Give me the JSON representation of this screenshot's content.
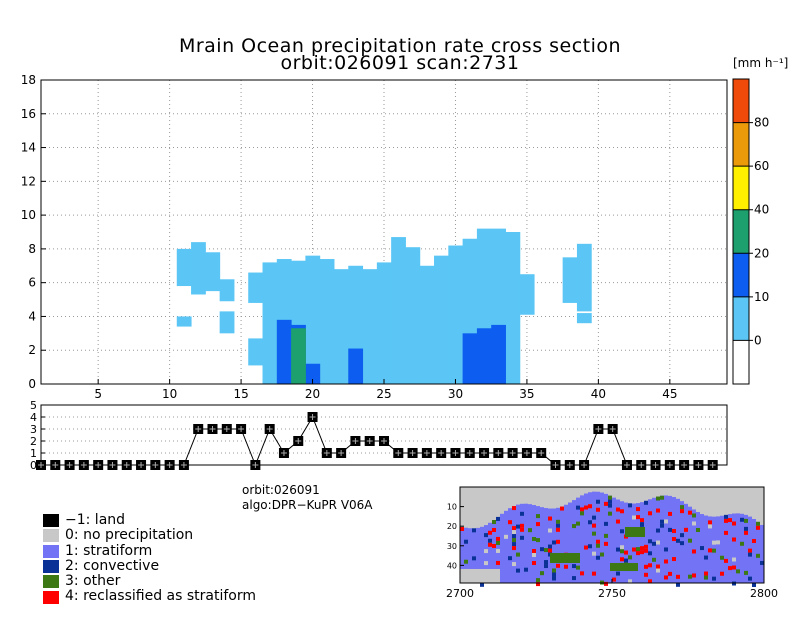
{
  "title": {
    "line1": "Mrain Ocean precipitation rate cross section",
    "line2": "orbit:026091    scan:2731"
  },
  "chart_data": [
    {
      "id": "cross-section",
      "type": "heatmap",
      "title": "Mrain Ocean precipitation rate cross section",
      "xlim": [
        1,
        49
      ],
      "ylim": [
        0,
        18
      ],
      "xticks": [
        5,
        10,
        15,
        20,
        25,
        30,
        35,
        40,
        45
      ],
      "yticks": [
        0,
        2,
        4,
        6,
        8,
        10,
        12,
        14,
        16,
        18
      ],
      "grid": true,
      "colorbar": {
        "unit": "[mm h⁻¹]",
        "levels": [
          -10,
          0,
          10,
          20,
          40,
          60,
          80,
          100
        ],
        "tick_labels": [
          "0",
          "10",
          "20",
          "40",
          "60",
          "80"
        ],
        "colors": [
          "#ffffff",
          "#5bc6f5",
          "#0d5ef0",
          "#1ea06e",
          "#fff000",
          "#eb9a0a",
          "#f04a0a"
        ]
      },
      "light_rain_columns": [
        {
          "x": 11,
          "from": 5.8,
          "to": 8.0
        },
        {
          "x": 12,
          "from": 5.3,
          "to": 8.4
        },
        {
          "x": 13,
          "from": 5.5,
          "to": 7.8
        },
        {
          "x": 14,
          "from": 4.9,
          "to": 6.2
        },
        {
          "x": 16,
          "from": 4.8,
          "to": 6.6
        },
        {
          "x": 17,
          "from": 0,
          "to": 7.2
        },
        {
          "x": 18,
          "from": 0,
          "to": 7.4
        },
        {
          "x": 19,
          "from": 0,
          "to": 7.3
        },
        {
          "x": 20,
          "from": 0,
          "to": 7.6
        },
        {
          "x": 21,
          "from": 0,
          "to": 7.4
        },
        {
          "x": 22,
          "from": 0,
          "to": 6.8
        },
        {
          "x": 23,
          "from": 0,
          "to": 7.0
        },
        {
          "x": 24,
          "from": 0,
          "to": 6.8
        },
        {
          "x": 25,
          "from": 0,
          "to": 7.2
        },
        {
          "x": 26,
          "from": 0,
          "to": 8.7
        },
        {
          "x": 27,
          "from": 0,
          "to": 8.1
        },
        {
          "x": 28,
          "from": 0,
          "to": 7.0
        },
        {
          "x": 29,
          "from": 0,
          "to": 7.6
        },
        {
          "x": 30,
          "from": 0,
          "to": 8.2
        },
        {
          "x": 31,
          "from": 0,
          "to": 8.6
        },
        {
          "x": 32,
          "from": 0,
          "to": 9.2
        },
        {
          "x": 33,
          "from": 0,
          "to": 9.2
        },
        {
          "x": 34,
          "from": 0,
          "to": 9.0
        },
        {
          "x": 35,
          "from": 4.1,
          "to": 6.5
        },
        {
          "x": 38,
          "from": 4.8,
          "to": 7.5
        },
        {
          "x": 39,
          "from": 4.3,
          "to": 8.3
        }
      ],
      "light_rain_patches": [
        {
          "x": 11,
          "from": 3.4,
          "to": 4.0
        },
        {
          "x": 14,
          "from": 3.0,
          "to": 4.3
        },
        {
          "x": 16,
          "from": 1.1,
          "to": 2.7
        },
        {
          "x": 39,
          "from": 3.6,
          "to": 4.2
        }
      ],
      "moderate_rain_columns": [
        {
          "x": 18,
          "from": 0,
          "to": 3.8
        },
        {
          "x": 19,
          "from": 0,
          "to": 3.5
        },
        {
          "x": 20,
          "from": 0,
          "to": 1.2
        },
        {
          "x": 23,
          "from": 0,
          "to": 2.1
        },
        {
          "x": 31,
          "from": 0,
          "to": 3.0
        },
        {
          "x": 32,
          "from": 0,
          "to": 3.3
        },
        {
          "x": 33,
          "from": 0,
          "to": 3.5
        }
      ],
      "heavy_rain_columns": [
        {
          "x": 19,
          "from": 0,
          "to": 3.3
        }
      ]
    },
    {
      "id": "rain-type",
      "type": "line",
      "ylim": [
        0,
        5
      ],
      "yticks": [
        0,
        1,
        2,
        3,
        4,
        5
      ],
      "x": [
        1,
        2,
        3,
        4,
        5,
        6,
        7,
        8,
        9,
        10,
        11,
        12,
        13,
        14,
        15,
        16,
        17,
        18,
        19,
        20,
        21,
        22,
        23,
        24,
        25,
        26,
        27,
        28,
        29,
        30,
        31,
        32,
        33,
        34,
        35,
        36,
        37,
        38,
        39,
        40,
        41,
        42,
        43,
        44,
        45,
        46,
        47,
        48
      ],
      "y": [
        0,
        0,
        0,
        0,
        0,
        0,
        0,
        0,
        0,
        0,
        0,
        3,
        3,
        3,
        3,
        0,
        3,
        1,
        2,
        4,
        1,
        1,
        2,
        2,
        2,
        1,
        1,
        1,
        1,
        1,
        1,
        1,
        1,
        1,
        1,
        1,
        0,
        0,
        0,
        3,
        3,
        0,
        0,
        0,
        0,
        0,
        0,
        0
      ]
    },
    {
      "id": "swath-map",
      "type": "heatmap",
      "xticks": [
        2700,
        2750,
        2800
      ],
      "yticks": [
        10,
        20,
        30,
        40
      ]
    }
  ],
  "info": {
    "orbit": "orbit:026091",
    "algo": "algo:DPR−KuPR V06A"
  },
  "legend": [
    {
      "label": "−1: land",
      "color": "#000000"
    },
    {
      "label": "0: no precipitation",
      "color": "#c8c8c8"
    },
    {
      "label": "1: stratiform",
      "color": "#7373f5"
    },
    {
      "label": "2: convective",
      "color": "#0a3296"
    },
    {
      "label": "3: other",
      "color": "#3c7814"
    },
    {
      "label": "4: reclassified as stratiform",
      "color": "#ff0000"
    }
  ]
}
